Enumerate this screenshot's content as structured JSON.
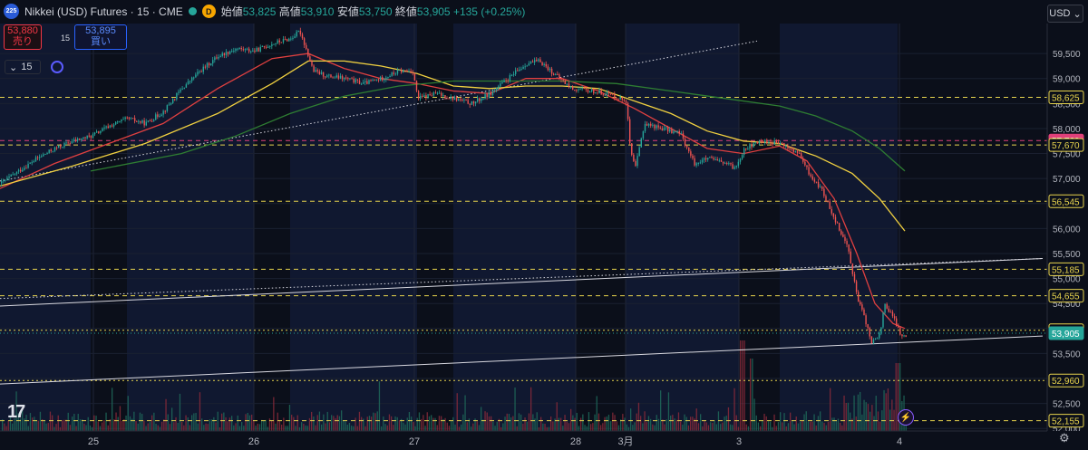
{
  "header": {
    "badge": "225",
    "symbol": "Nikkei (USD) Futures · 15 · CME",
    "d_badge": "D",
    "open_label": "始値",
    "open": "53,825",
    "high_label": "高値",
    "high": "53,910",
    "low_label": "安値",
    "low": "53,750",
    "close_label": "終値",
    "close": "53,905",
    "change": "+135 (+0.25%)"
  },
  "trade": {
    "sell_price": "53,880",
    "sell_label": "売り",
    "spread": "15",
    "buy_price": "53,895",
    "buy_label": "買い"
  },
  "interval": "15",
  "currency": "USD",
  "colors": {
    "background": "#0b0f1a",
    "up": "#26a69a",
    "down": "#ef5350",
    "ema_fast": "#e04040",
    "ema_mid": "#f0d040",
    "ema_slow": "#2e7d32",
    "hline": "#f0d040"
  },
  "chart_data": {
    "type": "line",
    "symbol": "Nikkei (USD) Futures",
    "timeframe": "15",
    "x_ticks": [
      "25",
      "26",
      "27",
      "28",
      "3月",
      "3",
      "4"
    ],
    "y_ticks": [
      "59,500",
      "59,000",
      "58,500",
      "58,000",
      "57,500",
      "57,000",
      "56,500",
      "56,000",
      "55,500",
      "55,000",
      "54,500",
      "54,000",
      "53,500",
      "53,000",
      "52,500",
      "52,000"
    ],
    "ylim": [
      51950,
      60100
    ],
    "price_labels": [
      {
        "value": 58625,
        "text": "58,625",
        "style": "yellow-dashed"
      },
      {
        "value": 57760,
        "text": "57,760",
        "style": "pink-dashed"
      },
      {
        "value": 57670,
        "text": "57,670",
        "style": "yellow-dashed"
      },
      {
        "value": 56545,
        "text": "56,545",
        "style": "yellow-dashed"
      },
      {
        "value": 55185,
        "text": "55,185",
        "style": "yellow-dashed"
      },
      {
        "value": 54655,
        "text": "54,655",
        "style": "yellow-dashed"
      },
      {
        "value": 53965,
        "text": "53,965",
        "style": "yellow-dotted"
      },
      {
        "value": 53905,
        "text": "53,905",
        "style": "current"
      },
      {
        "value": 52960,
        "text": "52,960",
        "style": "yellow-dotted"
      },
      {
        "value": 52155,
        "text": "52,155",
        "style": "yellow-dashed"
      }
    ],
    "price_path": [
      [
        0,
        56900
      ],
      [
        20,
        57150
      ],
      [
        40,
        57400
      ],
      [
        60,
        57600
      ],
      [
        80,
        57750
      ],
      [
        100,
        57850
      ],
      [
        120,
        58050
      ],
      [
        140,
        58200
      ],
      [
        160,
        58100
      ],
      [
        180,
        58350
      ],
      [
        200,
        58800
      ],
      [
        220,
        59150
      ],
      [
        240,
        59450
      ],
      [
        260,
        59600
      ],
      [
        280,
        59550
      ],
      [
        300,
        59700
      ],
      [
        320,
        59800
      ],
      [
        330,
        59950
      ],
      [
        335,
        59700
      ],
      [
        345,
        59150
      ],
      [
        360,
        59050
      ],
      [
        380,
        59000
      ],
      [
        400,
        58900
      ],
      [
        420,
        59000
      ],
      [
        440,
        59150
      ],
      [
        455,
        59150
      ],
      [
        460,
        58600
      ],
      [
        480,
        58700
      ],
      [
        500,
        58600
      ],
      [
        520,
        58500
      ],
      [
        540,
        58700
      ],
      [
        560,
        59000
      ],
      [
        580,
        59300
      ],
      [
        595,
        59350
      ],
      [
        610,
        59100
      ],
      [
        630,
        58800
      ],
      [
        650,
        58750
      ],
      [
        670,
        58700
      ],
      [
        690,
        58550
      ],
      [
        695,
        57500
      ],
      [
        700,
        57200
      ],
      [
        710,
        58100
      ],
      [
        730,
        58000
      ],
      [
        750,
        57900
      ],
      [
        765,
        57300
      ],
      [
        780,
        57400
      ],
      [
        800,
        57300
      ],
      [
        810,
        57200
      ],
      [
        820,
        57600
      ],
      [
        840,
        57750
      ],
      [
        860,
        57700
      ],
      [
        880,
        57500
      ],
      [
        895,
        57000
      ],
      [
        905,
        56800
      ],
      [
        920,
        56200
      ],
      [
        935,
        55600
      ],
      [
        945,
        54600
      ],
      [
        955,
        54100
      ],
      [
        960,
        53700
      ],
      [
        970,
        53900
      ],
      [
        975,
        54500
      ],
      [
        985,
        54200
      ],
      [
        995,
        53800
      ],
      [
        1000,
        53900
      ]
    ],
    "series": [
      {
        "color": "#e04040",
        "values": [
          [
            0,
            56800
          ],
          [
            60,
            57300
          ],
          [
            120,
            57700
          ],
          [
            180,
            58100
          ],
          [
            240,
            58800
          ],
          [
            300,
            59400
          ],
          [
            340,
            59500
          ],
          [
            380,
            59200
          ],
          [
            420,
            59000
          ],
          [
            460,
            58900
          ],
          [
            500,
            58750
          ],
          [
            540,
            58700
          ],
          [
            580,
            59000
          ],
          [
            620,
            59000
          ],
          [
            660,
            58750
          ],
          [
            700,
            58400
          ],
          [
            740,
            58000
          ],
          [
            780,
            57600
          ],
          [
            820,
            57500
          ],
          [
            860,
            57650
          ],
          [
            890,
            57350
          ],
          [
            920,
            56600
          ],
          [
            945,
            55500
          ],
          [
            965,
            54500
          ],
          [
            985,
            54100
          ],
          [
            998,
            54000
          ]
        ]
      },
      {
        "color": "#f0d040",
        "values": [
          [
            0,
            56850
          ],
          [
            80,
            57250
          ],
          [
            160,
            57700
          ],
          [
            240,
            58300
          ],
          [
            300,
            58900
          ],
          [
            340,
            59350
          ],
          [
            380,
            59350
          ],
          [
            420,
            59250
          ],
          [
            460,
            59100
          ],
          [
            500,
            58850
          ],
          [
            540,
            58800
          ],
          [
            580,
            58850
          ],
          [
            620,
            58850
          ],
          [
            660,
            58800
          ],
          [
            700,
            58550
          ],
          [
            740,
            58300
          ],
          [
            780,
            57950
          ],
          [
            820,
            57750
          ],
          [
            860,
            57700
          ],
          [
            900,
            57450
          ],
          [
            940,
            57100
          ],
          [
            970,
            56600
          ],
          [
            998,
            55950
          ]
        ]
      },
      {
        "color": "#2e7d32",
        "values": [
          [
            100,
            57150
          ],
          [
            200,
            57500
          ],
          [
            260,
            57850
          ],
          [
            320,
            58300
          ],
          [
            380,
            58650
          ],
          [
            440,
            58850
          ],
          [
            500,
            58950
          ],
          [
            560,
            58950
          ],
          [
            620,
            58950
          ],
          [
            680,
            58900
          ],
          [
            740,
            58750
          ],
          [
            800,
            58600
          ],
          [
            860,
            58450
          ],
          [
            900,
            58250
          ],
          [
            940,
            57950
          ],
          [
            970,
            57600
          ],
          [
            998,
            57150
          ]
        ]
      }
    ],
    "trendlines": [
      {
        "points": [
          [
            0,
            56950
          ],
          [
            835,
            59750
          ]
        ],
        "style": "dotted"
      },
      {
        "points": [
          [
            0,
            54450
          ],
          [
            1150,
            55400
          ]
        ],
        "style": "solid"
      },
      {
        "points": [
          [
            0,
            54600
          ],
          [
            1150,
            55400
          ]
        ],
        "style": "dotted"
      },
      {
        "points": [
          [
            0,
            52890
          ],
          [
            1150,
            53850
          ]
        ],
        "style": "solid"
      }
    ]
  }
}
